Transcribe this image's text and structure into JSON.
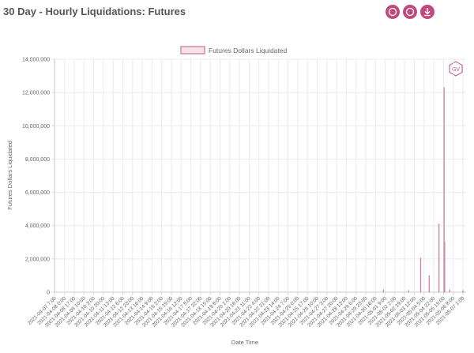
{
  "chart_data": {
    "type": "bar",
    "title": "30 Day - Hourly Liquidations: Futures",
    "logo": "GV",
    "xlabel": "Date Time",
    "ylabel": "Futures Dollars Liquidated",
    "grid": true,
    "ylim": [
      0,
      14000000
    ],
    "yticks": [
      {
        "value": 0,
        "label": "0"
      },
      {
        "value": 2000000,
        "label": "2,000,000"
      },
      {
        "value": 4000000,
        "label": "4,000,000"
      },
      {
        "value": 6000000,
        "label": "6,000,000"
      },
      {
        "value": 8000000,
        "label": "8,000,000"
      },
      {
        "value": 10000000,
        "label": "10,000,000"
      },
      {
        "value": 12000000,
        "label": "12,000,000"
      },
      {
        "value": 14000000,
        "label": "14,000,000"
      }
    ],
    "categories": [
      "2021-04-07 7:00",
      null,
      null,
      null,
      null,
      null,
      null,
      null,
      null,
      null,
      null,
      null,
      null,
      null,
      null,
      null,
      null,
      "2021-04-08 0:00",
      null,
      null,
      null,
      null,
      null,
      null,
      null,
      null,
      null,
      null,
      null,
      null,
      null,
      null,
      null,
      null,
      "2021-04-08 17:00",
      null,
      null,
      null,
      null,
      null,
      null,
      null,
      null,
      null,
      null,
      null,
      null,
      null,
      null,
      null,
      null,
      "2021-04-09 10:00",
      null,
      null,
      null,
      null,
      null,
      null,
      null,
      null,
      null,
      null,
      null,
      null,
      null,
      null,
      null,
      null,
      "2021-04-10 3:00",
      null,
      null,
      null,
      null,
      null,
      null,
      null,
      null,
      null,
      null,
      null,
      null,
      null,
      null,
      null,
      null,
      "2021-04-10 20:00",
      null,
      null,
      null,
      null,
      null,
      null,
      null,
      null,
      null,
      null,
      null,
      null,
      null,
      null,
      null,
      null,
      "2021-04-11 13:00",
      null,
      null,
      null,
      null,
      null,
      null,
      null,
      null,
      null,
      null,
      null,
      null,
      null,
      null,
      null,
      null,
      "2021-04-12 6:00",
      null,
      null,
      null,
      null,
      null,
      null,
      null,
      null,
      null,
      null,
      null,
      null,
      null,
      null,
      null,
      null,
      "2021-04-12 23:00",
      null,
      null,
      null,
      null,
      null,
      null,
      null,
      null,
      null,
      null,
      null,
      null,
      null,
      null,
      null,
      null,
      "2021-04-13 16:00",
      null,
      null,
      null,
      null,
      null,
      null,
      null,
      null,
      null,
      null,
      null,
      null,
      null,
      null,
      null,
      null,
      "2021-04-14 9:00",
      null,
      null,
      null,
      null,
      null,
      null,
      null,
      null,
      null,
      null,
      null,
      null,
      null,
      null,
      null,
      null,
      "2021-04-15 2:00",
      null,
      null,
      null,
      null,
      null,
      null,
      null,
      null,
      null,
      null,
      null,
      null,
      null,
      null,
      null,
      null,
      "2021-04-15 19:00",
      null,
      null,
      null,
      null,
      null,
      null,
      null,
      null,
      null,
      null,
      null,
      null,
      null,
      null,
      null,
      null,
      "2021-04-16 12:00",
      null,
      null,
      null,
      null,
      null,
      null,
      null,
      null,
      null,
      null,
      null,
      null,
      null,
      null,
      null,
      null,
      "2021-04-17 5:00",
      null,
      null,
      null,
      null,
      null,
      null,
      null,
      null,
      null,
      null,
      null,
      null,
      null,
      null,
      null,
      null,
      "2021-04-17 22:00",
      null,
      null,
      null,
      null,
      null,
      null,
      null,
      null,
      null,
      null,
      null,
      null,
      null,
      null,
      null,
      null,
      "2021-04-18 15:00",
      null,
      null,
      null,
      null,
      null,
      null,
      null,
      null,
      null,
      null,
      null,
      null,
      null,
      null,
      null,
      null,
      "2021-04-19 8:00",
      null,
      null,
      null,
      null,
      null,
      null,
      null,
      null,
      null,
      null,
      null,
      null,
      null,
      null,
      null,
      null,
      "2021-04-20 1:00",
      null,
      null,
      null,
      null,
      null,
      null,
      null,
      null,
      null,
      null,
      null,
      null,
      null,
      null,
      null,
      null,
      "2021-04-20 18:00",
      null,
      null,
      null,
      null,
      null,
      null,
      null,
      null,
      null,
      null,
      null,
      null,
      null,
      null,
      null,
      null,
      "2021-04-21 11:00",
      null,
      null,
      null,
      null,
      null,
      null,
      null,
      null,
      null,
      null,
      null,
      null,
      null,
      null,
      null,
      null,
      "2021-04-22 4:00",
      null,
      null,
      null,
      null,
      null,
      null,
      null,
      null,
      null,
      null,
      null,
      null,
      null,
      null,
      null,
      null,
      "2021-04-22 21:00",
      null,
      null,
      null,
      null,
      null,
      null,
      null,
      null,
      null,
      null,
      null,
      null,
      null,
      null,
      null,
      null,
      "2021-04-23 14:00",
      null,
      null,
      null,
      null,
      null,
      null,
      null,
      null,
      null,
      null,
      null,
      null,
      null,
      null,
      null,
      null,
      "2021-04-24 7:00",
      null,
      null,
      null,
      null,
      null,
      null,
      null,
      null,
      null,
      null,
      null,
      null,
      null,
      null,
      null,
      null,
      "2021-04-25 0:00",
      null,
      null,
      null,
      null,
      null,
      null,
      null,
      null,
      null,
      null,
      null,
      null,
      null,
      null,
      null,
      null,
      "2021-04-25 17:00",
      null,
      null,
      null,
      null,
      null,
      null,
      null,
      null,
      null,
      null,
      null,
      null,
      null,
      null,
      null,
      null,
      "2021-04-26 10:00",
      null,
      null,
      null,
      null,
      null,
      null,
      null,
      null,
      null,
      null,
      null,
      null,
      null,
      null,
      null,
      null,
      "2021-04-27 3:00",
      null,
      null,
      null,
      null,
      null,
      null,
      null,
      null,
      null,
      null,
      null,
      null,
      null,
      null,
      null,
      null,
      "2021-04-27 20:00",
      null,
      null,
      null,
      null,
      null,
      null,
      null,
      null,
      null,
      null,
      null,
      null,
      null,
      null,
      null,
      null,
      "2021-04-28 13:00",
      null,
      null,
      null,
      null,
      null,
      null,
      null,
      null,
      null,
      null,
      null,
      null,
      null,
      null,
      null,
      null,
      "2021-04-29 6:00",
      null,
      null,
      null,
      null,
      null,
      null,
      null,
      null,
      null,
      null,
      null,
      null,
      null,
      null,
      null,
      null,
      "2021-04-29 23:00",
      null,
      null,
      null,
      null,
      null,
      null,
      null,
      null,
      null,
      null,
      null,
      null,
      null,
      null,
      null,
      null,
      "2021-04-30 16:00",
      null,
      null,
      null,
      null,
      null,
      null,
      null,
      null,
      null,
      null,
      null,
      null,
      null,
      null,
      null,
      null,
      "2021-05-01 9:00",
      null,
      null,
      null,
      null,
      null,
      null,
      null,
      null,
      null,
      null,
      null,
      null,
      null,
      null,
      null,
      null,
      "2021-05-02 2:00",
      null,
      null,
      null,
      null,
      null,
      null,
      null,
      null,
      null,
      null,
      null,
      null,
      null,
      null,
      null,
      null,
      "2021-05-02 19:00",
      null,
      null,
      null,
      null,
      null,
      null,
      null,
      null,
      null,
      null,
      null,
      null,
      null,
      null,
      null,
      null,
      "2021-05-03 12:00",
      null,
      null,
      null,
      null,
      null,
      null,
      null,
      null,
      null,
      null,
      null,
      null,
      null,
      null,
      null,
      null,
      "2021-05-04 5:00",
      null,
      null,
      null,
      null,
      null,
      null,
      null,
      null,
      null,
      null,
      null,
      null,
      null,
      null,
      null,
      null,
      "2021-05-04 22:00",
      null,
      null,
      null,
      null,
      null,
      null,
      null,
      null,
      null,
      null,
      null,
      null,
      null,
      null,
      null,
      null,
      "2021-05-05 15:00",
      null,
      null,
      null,
      null,
      null,
      null,
      null,
      null,
      null,
      null,
      null,
      null,
      null,
      null,
      null,
      null,
      "2021-05-06 8:00",
      null,
      null,
      null,
      null,
      null,
      null,
      null,
      null,
      null,
      null,
      null,
      null,
      null,
      null,
      null,
      null,
      "2021-05-07 1:00",
      null,
      null,
      null,
      null,
      null
    ],
    "series": [
      {
        "name": "Futures Dollars Liquidated",
        "color": "#d08ca9",
        "values": [
          0,
          0,
          0,
          0,
          0,
          0,
          0,
          0,
          0,
          0,
          0,
          0,
          0,
          0,
          0,
          0,
          0,
          0,
          0,
          0,
          0,
          0,
          0,
          0,
          0,
          0,
          0,
          0,
          0,
          0,
          0,
          0,
          0,
          0,
          0,
          0,
          0,
          0,
          0,
          0,
          0,
          0,
          0,
          0,
          0,
          0,
          0,
          0,
          0,
          0,
          0,
          0,
          0,
          0,
          0,
          0,
          0,
          0,
          0,
          0,
          0,
          0,
          0,
          0,
          0,
          0,
          0,
          0,
          0,
          0,
          0,
          0,
          0,
          0,
          0,
          0,
          0,
          0,
          0,
          0,
          0,
          0,
          0,
          0,
          0,
          0,
          0,
          0,
          0,
          0,
          0,
          0,
          0,
          0,
          0,
          0,
          0,
          0,
          0,
          0,
          0,
          0,
          0,
          0,
          0,
          0,
          0,
          0,
          0,
          0,
          0,
          0,
          0,
          0,
          0,
          0,
          0,
          0,
          0,
          0,
          0,
          0,
          0,
          0,
          0,
          0,
          0,
          0,
          0,
          0,
          0,
          0,
          0,
          0,
          0,
          0,
          0,
          0,
          0,
          0,
          0,
          0,
          0,
          0,
          0,
          0,
          0,
          0,
          0,
          0,
          0,
          0,
          0,
          0,
          0,
          0,
          0,
          0,
          0,
          0,
          0,
          0,
          0,
          0,
          0,
          0,
          0,
          0,
          0,
          0,
          0,
          0,
          0,
          0,
          0,
          0,
          0,
          0,
          0,
          0,
          0,
          0,
          0,
          0,
          0,
          0,
          0,
          0,
          0,
          0,
          0,
          0,
          0,
          0,
          0,
          0,
          0,
          0,
          0,
          0,
          0,
          0,
          0,
          0,
          0,
          0,
          0,
          0,
          0,
          0,
          0,
          0,
          0,
          0,
          0,
          0,
          0,
          0,
          0,
          0,
          0,
          0,
          0,
          0,
          0,
          0,
          0,
          0,
          0,
          0,
          0,
          0,
          0,
          0,
          0,
          0,
          0,
          0,
          0,
          0,
          0,
          0,
          0,
          0,
          0,
          0,
          0,
          0,
          0,
          0,
          0,
          0,
          0,
          0,
          0,
          0,
          0,
          0,
          0,
          0,
          0,
          0,
          0,
          0,
          0,
          0,
          0,
          0,
          0,
          0,
          0,
          0,
          0,
          0,
          0,
          0,
          0,
          0,
          0,
          0,
          0,
          0,
          0,
          0,
          0,
          0,
          0,
          0,
          0,
          0,
          0,
          0,
          0,
          0,
          0,
          0,
          0,
          0,
          0,
          0,
          0,
          0,
          0,
          0,
          0,
          0,
          0,
          0,
          0,
          0,
          0,
          0,
          0,
          0,
          0,
          0,
          0,
          0,
          0,
          0,
          0,
          0,
          0,
          0,
          0,
          0,
          0,
          0,
          0,
          0,
          0,
          0,
          0,
          0,
          0,
          0,
          0,
          0,
          0,
          0,
          0,
          0,
          0,
          0,
          0,
          0,
          0,
          0,
          0,
          0,
          0,
          0,
          0,
          0,
          0,
          0,
          0,
          0,
          0,
          0,
          0,
          0,
          0,
          0,
          0,
          0,
          0,
          0,
          0,
          0,
          0,
          0,
          0,
          0,
          0,
          0,
          0,
          0,
          0,
          0,
          0,
          0,
          0,
          0,
          0,
          0,
          0,
          0,
          0,
          0,
          0,
          0,
          0,
          0,
          0,
          0,
          0,
          0,
          0,
          0,
          0,
          0,
          0,
          0,
          0,
          0,
          0,
          0,
          0,
          0,
          0,
          0,
          0,
          0,
          0,
          0,
          0,
          0,
          0,
          0,
          0,
          0,
          0,
          0,
          0,
          0,
          0,
          0,
          0,
          0,
          0,
          0,
          0,
          0,
          0,
          0,
          0,
          0,
          0,
          0,
          0,
          0,
          0,
          0,
          0,
          0,
          0,
          0,
          0,
          0,
          0,
          0,
          0,
          0,
          0,
          0,
          0,
          0,
          0,
          0,
          0,
          0,
          0,
          0,
          0,
          0,
          0,
          0,
          0,
          0,
          0,
          0,
          0,
          0,
          0,
          0,
          0,
          0,
          0,
          0,
          0,
          0,
          0,
          0,
          0,
          0,
          0,
          0,
          0,
          0,
          0,
          0,
          0,
          0,
          0,
          0,
          0,
          0,
          0,
          0,
          0,
          0,
          0,
          0,
          0,
          0,
          0,
          0,
          0,
          0,
          0,
          0,
          0,
          0,
          0,
          0,
          0,
          0,
          0,
          0,
          0,
          0,
          0,
          0,
          0,
          0,
          0,
          0,
          0,
          0,
          0,
          0,
          0,
          0,
          0,
          0,
          0,
          0,
          0,
          0,
          0,
          0,
          0,
          0,
          0,
          0,
          0,
          0,
          0,
          0,
          0,
          0,
          0,
          0,
          0,
          0,
          0,
          0,
          0,
          0,
          0,
          0,
          0,
          0,
          0,
          0,
          0,
          0,
          0,
          0,
          0,
          0,
          0,
          0,
          0,
          150000,
          0,
          0,
          0,
          0,
          0,
          0,
          0,
          0,
          0,
          0,
          0,
          0,
          0,
          0,
          0,
          0,
          0,
          0,
          0,
          0,
          0,
          0,
          0,
          0,
          0,
          0,
          0,
          0,
          0,
          0,
          0,
          0,
          0,
          0,
          0,
          0,
          0,
          0,
          0,
          0,
          0,
          0,
          0,
          100000,
          0,
          0,
          0,
          0,
          0,
          0,
          0,
          0,
          0,
          0,
          0,
          0,
          0,
          0,
          0,
          0,
          0,
          0,
          0,
          0,
          2050000,
          0,
          0,
          0,
          0,
          0,
          0,
          0,
          0,
          0,
          0,
          0,
          0,
          0,
          0,
          1000000,
          0,
          0,
          0,
          0,
          0,
          0,
          0,
          0,
          0,
          0,
          0,
          0,
          0,
          0,
          0,
          0,
          4100000,
          0,
          0,
          0,
          0,
          0,
          0,
          0,
          0,
          12300000,
          3000000,
          0,
          0,
          0,
          0,
          0,
          0,
          0,
          0,
          150000,
          0,
          0,
          0,
          0,
          0,
          0,
          0,
          0,
          0,
          0,
          0,
          0,
          0,
          0,
          0,
          0,
          0,
          0,
          0,
          0,
          0,
          0,
          100000,
          0,
          0,
          0,
          0,
          0
        ]
      }
    ]
  }
}
